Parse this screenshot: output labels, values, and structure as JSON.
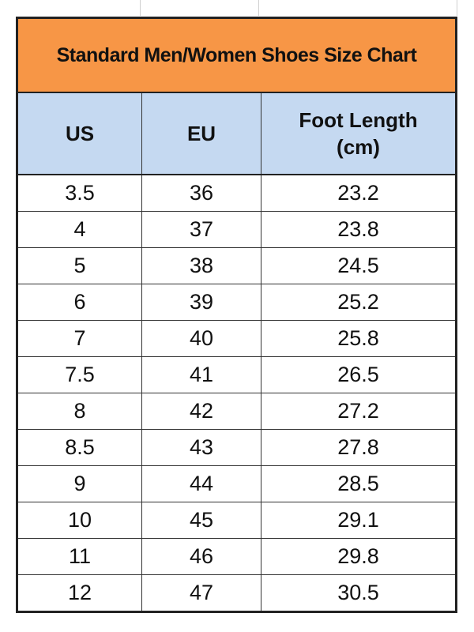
{
  "title": "Standard Men/Women Shoes Size Chart",
  "headers": {
    "us": "US",
    "eu": "EU",
    "foot_length": "Foot Length",
    "foot_length_unit": "(cm)"
  },
  "rows": [
    {
      "us": "3.5",
      "eu": "36",
      "cm": "23.2"
    },
    {
      "us": "4",
      "eu": "37",
      "cm": "23.8"
    },
    {
      "us": "5",
      "eu": "38",
      "cm": "24.5"
    },
    {
      "us": "6",
      "eu": "39",
      "cm": "25.2"
    },
    {
      "us": "7",
      "eu": "40",
      "cm": "25.8"
    },
    {
      "us": "7.5",
      "eu": "41",
      "cm": "26.5"
    },
    {
      "us": "8",
      "eu": "42",
      "cm": "27.2"
    },
    {
      "us": "8.5",
      "eu": "43",
      "cm": "27.8"
    },
    {
      "us": "9",
      "eu": "44",
      "cm": "28.5"
    },
    {
      "us": "10",
      "eu": "45",
      "cm": "29.1"
    },
    {
      "us": "11",
      "eu": "46",
      "cm": "29.8"
    },
    {
      "us": "12",
      "eu": "47",
      "cm": "30.5"
    }
  ],
  "colors": {
    "title_bg": "#F79646",
    "header_bg": "#C5D9F1"
  }
}
